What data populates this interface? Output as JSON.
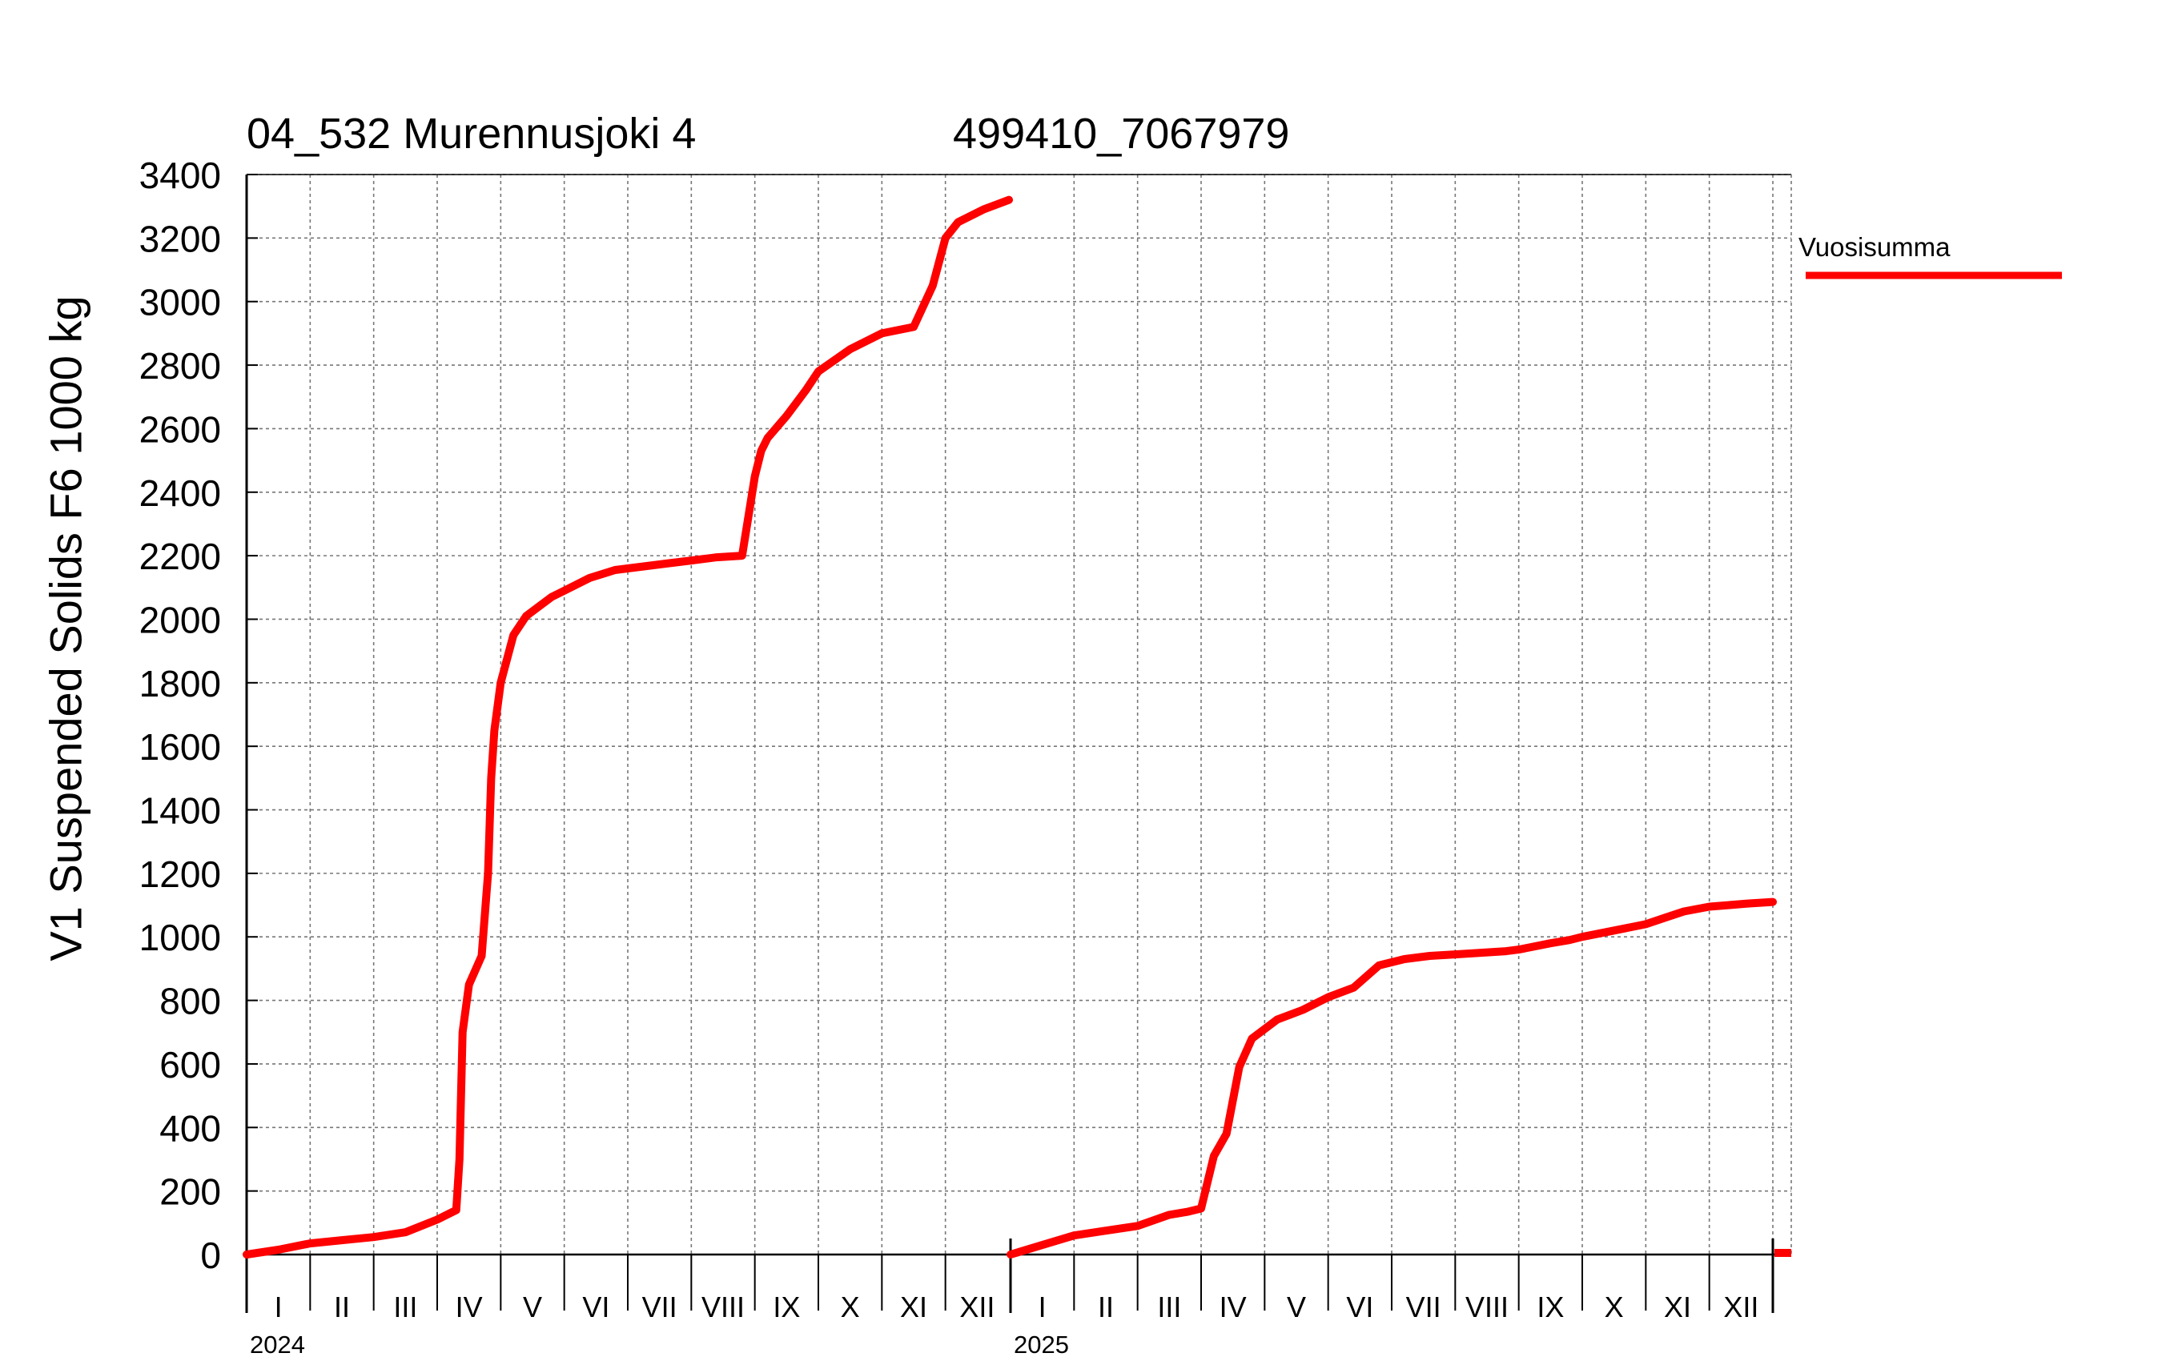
{
  "header": {
    "station": "04_532 Murennusjoki 4",
    "coordinates": "499410_7067979"
  },
  "legend": {
    "label": "Vuosisumma",
    "color": "#ff0000"
  },
  "chart_data": {
    "type": "line",
    "ylabel": "V1 Suspended Solids F6 1000 kg",
    "ylim": [
      0,
      3400
    ],
    "yticks": [
      "0",
      "200",
      "400",
      "600",
      "800",
      "1000",
      "1200",
      "1400",
      "1600",
      "1800",
      "2000",
      "2200",
      "2400",
      "2600",
      "2800",
      "3000",
      "3200",
      "3400"
    ],
    "month_labels": [
      "I",
      "II",
      "III",
      "IV",
      "V",
      "VI",
      "VII",
      "VIII",
      "IX",
      "X",
      "XI",
      "XII"
    ],
    "years": [
      "2024",
      "2025"
    ],
    "grid": true,
    "legend_position": "top-right",
    "series": [
      {
        "name": "Vuosisumma",
        "color": "#ff0000",
        "year": "2024",
        "x_month": [
          0,
          0.5,
          1.0,
          1.5,
          2.0,
          2.5,
          3.0,
          3.3,
          3.35,
          3.4,
          3.5,
          3.7,
          3.8,
          3.85,
          3.9,
          4.0,
          4.2,
          4.4,
          4.6,
          4.8,
          5.0,
          5.4,
          5.8,
          6.2,
          6.6,
          7.0,
          7.4,
          7.8,
          8.0,
          8.1,
          8.2,
          8.5,
          8.8,
          9.0,
          9.5,
          10.0,
          10.5,
          10.8,
          11.0,
          11.2,
          11.6,
          12.0
        ],
        "y": [
          0,
          15,
          35,
          45,
          55,
          70,
          110,
          140,
          300,
          700,
          850,
          940,
          1200,
          1500,
          1650,
          1800,
          1950,
          2010,
          2040,
          2070,
          2090,
          2130,
          2155,
          2165,
          2175,
          2185,
          2195,
          2200,
          2450,
          2530,
          2570,
          2640,
          2720,
          2780,
          2850,
          2900,
          2920,
          3050,
          3200,
          3250,
          3290,
          3320
        ]
      },
      {
        "name": "Vuosisumma",
        "color": "#ff0000",
        "year": "2025",
        "x_month": [
          0,
          0.5,
          1.0,
          1.5,
          2.0,
          2.5,
          2.8,
          3.0,
          3.2,
          3.4,
          3.6,
          3.8,
          4.2,
          4.6,
          5.0,
          5.4,
          5.8,
          6.2,
          6.6,
          7.0,
          7.4,
          7.8,
          8.0,
          8.5,
          8.8,
          9.0,
          9.5,
          10.0,
          10.3,
          10.6,
          11.0,
          11.3,
          11.6,
          12.0
        ],
        "y": [
          0,
          30,
          60,
          75,
          90,
          125,
          135,
          145,
          310,
          380,
          590,
          680,
          740,
          770,
          810,
          840,
          910,
          930,
          940,
          945,
          950,
          955,
          960,
          980,
          990,
          1000,
          1020,
          1040,
          1060,
          1080,
          1095,
          1100,
          1105,
          1110
        ]
      }
    ]
  }
}
